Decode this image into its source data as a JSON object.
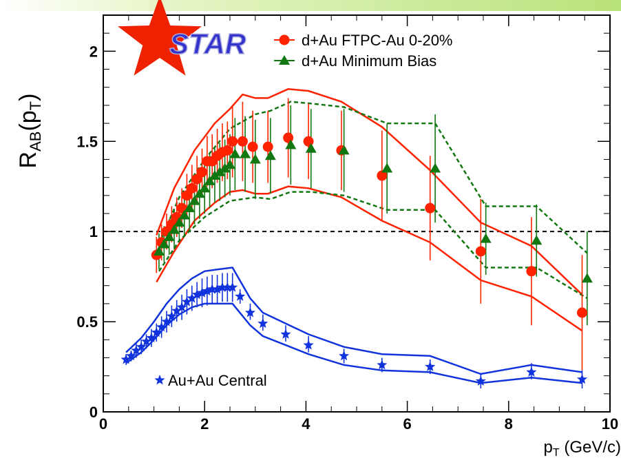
{
  "chart_data": {
    "type": "scatter",
    "xlabel": {
      "main": "p",
      "sub": "T",
      "rest": " (GeV/c)"
    },
    "ylabel": {
      "main": "R",
      "sub": "AB",
      "mid": "(p",
      "sub2": "T",
      "end": ")"
    },
    "xlim": [
      0,
      10
    ],
    "ylim": [
      0,
      2.2
    ],
    "xticks": [
      0,
      2,
      4,
      6,
      8,
      10
    ],
    "xtick_labels": [
      "0",
      "2",
      "4",
      "6",
      "8",
      "10"
    ],
    "yticks": [
      0,
      0.5,
      1,
      1.5,
      2
    ],
    "ytick_labels": [
      "0",
      "0.5",
      "1",
      "1.5",
      "2"
    ],
    "reference_line": {
      "y": 1,
      "style": "dashed",
      "color": "#000000"
    },
    "logo": {
      "text": "STAR",
      "color": "#3333cc",
      "star_color": "#ee2200"
    },
    "series": [
      {
        "name": "d+Au FTPC-Au 0-20%",
        "marker": "circle",
        "color": "#ff2200",
        "legend_position": "top",
        "points": [
          {
            "x": 1.05,
            "y": 0.87,
            "lo": 0.77,
            "hi": 0.97
          },
          {
            "x": 1.15,
            "y": 0.94,
            "lo": 0.84,
            "hi": 1.04
          },
          {
            "x": 1.25,
            "y": 1.0,
            "lo": 0.9,
            "hi": 1.1
          },
          {
            "x": 1.35,
            "y": 1.04,
            "lo": 0.94,
            "hi": 1.14
          },
          {
            "x": 1.45,
            "y": 1.08,
            "lo": 0.97,
            "hi": 1.19
          },
          {
            "x": 1.55,
            "y": 1.13,
            "lo": 1.02,
            "hi": 1.24
          },
          {
            "x": 1.65,
            "y": 1.2,
            "lo": 1.08,
            "hi": 1.32
          },
          {
            "x": 1.75,
            "y": 1.24,
            "lo": 1.11,
            "hi": 1.37
          },
          {
            "x": 1.85,
            "y": 1.29,
            "lo": 1.16,
            "hi": 1.42
          },
          {
            "x": 1.95,
            "y": 1.33,
            "lo": 1.2,
            "hi": 1.46
          },
          {
            "x": 2.05,
            "y": 1.39,
            "lo": 1.25,
            "hi": 1.53
          },
          {
            "x": 2.15,
            "y": 1.39,
            "lo": 1.24,
            "hi": 1.54
          },
          {
            "x": 2.25,
            "y": 1.42,
            "lo": 1.27,
            "hi": 1.57
          },
          {
            "x": 2.35,
            "y": 1.44,
            "lo": 1.28,
            "hi": 1.6
          },
          {
            "x": 2.45,
            "y": 1.45,
            "lo": 1.29,
            "hi": 1.61
          },
          {
            "x": 2.55,
            "y": 1.5,
            "lo": 1.3,
            "hi": 1.7
          },
          {
            "x": 2.75,
            "y": 1.5,
            "lo": 1.28,
            "hi": 1.72
          },
          {
            "x": 2.95,
            "y": 1.47,
            "lo": 1.27,
            "hi": 1.67
          },
          {
            "x": 3.25,
            "y": 1.47,
            "lo": 1.27,
            "hi": 1.67
          },
          {
            "x": 3.65,
            "y": 1.52,
            "lo": 1.3,
            "hi": 1.74
          },
          {
            "x": 4.05,
            "y": 1.5,
            "lo": 1.29,
            "hi": 1.71
          },
          {
            "x": 4.7,
            "y": 1.45,
            "lo": 1.23,
            "hi": 1.67
          },
          {
            "x": 5.5,
            "y": 1.31,
            "lo": 1.06,
            "hi": 1.56
          },
          {
            "x": 6.45,
            "y": 1.13,
            "lo": 0.84,
            "hi": 1.42
          },
          {
            "x": 7.45,
            "y": 0.89,
            "lo": 0.6,
            "hi": 1.18
          },
          {
            "x": 8.45,
            "y": 0.78,
            "lo": 0.48,
            "hi": 1.08
          },
          {
            "x": 9.45,
            "y": 0.55,
            "lo": 0.23,
            "hi": 0.87
          }
        ]
      },
      {
        "name": "d+Au Minimum Bias",
        "marker": "triangle",
        "color": "#117711",
        "legend_position": "top",
        "points": [
          {
            "x": 1.1,
            "y": 0.89,
            "lo": 0.79,
            "hi": 0.99
          },
          {
            "x": 1.2,
            "y": 0.93,
            "lo": 0.83,
            "hi": 1.03
          },
          {
            "x": 1.3,
            "y": 0.97,
            "lo": 0.87,
            "hi": 1.07
          },
          {
            "x": 1.4,
            "y": 1.01,
            "lo": 0.9,
            "hi": 1.12
          },
          {
            "x": 1.5,
            "y": 1.05,
            "lo": 0.94,
            "hi": 1.16
          },
          {
            "x": 1.6,
            "y": 1.09,
            "lo": 0.97,
            "hi": 1.21
          },
          {
            "x": 1.7,
            "y": 1.13,
            "lo": 1.0,
            "hi": 1.26
          },
          {
            "x": 1.8,
            "y": 1.17,
            "lo": 1.04,
            "hi": 1.3
          },
          {
            "x": 1.9,
            "y": 1.21,
            "lo": 1.07,
            "hi": 1.35
          },
          {
            "x": 2.0,
            "y": 1.24,
            "lo": 1.1,
            "hi": 1.38
          },
          {
            "x": 2.1,
            "y": 1.28,
            "lo": 1.13,
            "hi": 1.43
          },
          {
            "x": 2.2,
            "y": 1.31,
            "lo": 1.16,
            "hi": 1.46
          },
          {
            "x": 2.3,
            "y": 1.33,
            "lo": 1.17,
            "hi": 1.49
          },
          {
            "x": 2.4,
            "y": 1.35,
            "lo": 1.19,
            "hi": 1.51
          },
          {
            "x": 2.5,
            "y": 1.37,
            "lo": 1.2,
            "hi": 1.54
          },
          {
            "x": 2.6,
            "y": 1.43,
            "lo": 1.23,
            "hi": 1.63
          },
          {
            "x": 2.8,
            "y": 1.43,
            "lo": 1.22,
            "hi": 1.64
          },
          {
            "x": 3.0,
            "y": 1.4,
            "lo": 1.18,
            "hi": 1.62
          },
          {
            "x": 3.3,
            "y": 1.42,
            "lo": 1.21,
            "hi": 1.63
          },
          {
            "x": 3.7,
            "y": 1.48,
            "lo": 1.26,
            "hi": 1.7
          },
          {
            "x": 4.1,
            "y": 1.46,
            "lo": 1.24,
            "hi": 1.68
          },
          {
            "x": 4.75,
            "y": 1.45,
            "lo": 1.22,
            "hi": 1.68
          },
          {
            "x": 5.6,
            "y": 1.35,
            "lo": 1.1,
            "hi": 1.6
          },
          {
            "x": 6.55,
            "y": 1.35,
            "lo": 1.05,
            "hi": 1.65
          },
          {
            "x": 7.55,
            "y": 0.96,
            "lo": 0.76,
            "hi": 1.16
          },
          {
            "x": 8.55,
            "y": 0.95,
            "lo": 0.75,
            "hi": 1.15
          },
          {
            "x": 9.55,
            "y": 0.74,
            "lo": 0.48,
            "hi": 1.0
          }
        ]
      },
      {
        "name": "Au+Au Central",
        "marker": "star",
        "color": "#1133dd",
        "legend_position": "bottom-left",
        "points": [
          {
            "x": 0.45,
            "y": 0.29,
            "lo": 0.26,
            "hi": 0.32
          },
          {
            "x": 0.55,
            "y": 0.31,
            "lo": 0.28,
            "hi": 0.34
          },
          {
            "x": 0.65,
            "y": 0.34,
            "lo": 0.3,
            "hi": 0.38
          },
          {
            "x": 0.75,
            "y": 0.36,
            "lo": 0.32,
            "hi": 0.4
          },
          {
            "x": 0.85,
            "y": 0.39,
            "lo": 0.35,
            "hi": 0.43
          },
          {
            "x": 0.95,
            "y": 0.41,
            "lo": 0.36,
            "hi": 0.46
          },
          {
            "x": 1.05,
            "y": 0.44,
            "lo": 0.39,
            "hi": 0.49
          },
          {
            "x": 1.15,
            "y": 0.47,
            "lo": 0.41,
            "hi": 0.53
          },
          {
            "x": 1.25,
            "y": 0.5,
            "lo": 0.44,
            "hi": 0.56
          },
          {
            "x": 1.35,
            "y": 0.53,
            "lo": 0.47,
            "hi": 0.59
          },
          {
            "x": 1.45,
            "y": 0.56,
            "lo": 0.5,
            "hi": 0.62
          },
          {
            "x": 1.55,
            "y": 0.58,
            "lo": 0.51,
            "hi": 0.65
          },
          {
            "x": 1.65,
            "y": 0.61,
            "lo": 0.54,
            "hi": 0.68
          },
          {
            "x": 1.75,
            "y": 0.63,
            "lo": 0.56,
            "hi": 0.7
          },
          {
            "x": 1.85,
            "y": 0.65,
            "lo": 0.58,
            "hi": 0.72
          },
          {
            "x": 1.95,
            "y": 0.66,
            "lo": 0.58,
            "hi": 0.74
          },
          {
            "x": 2.05,
            "y": 0.67,
            "lo": 0.59,
            "hi": 0.75
          },
          {
            "x": 2.15,
            "y": 0.68,
            "lo": 0.6,
            "hi": 0.76
          },
          {
            "x": 2.25,
            "y": 0.68,
            "lo": 0.6,
            "hi": 0.76
          },
          {
            "x": 2.35,
            "y": 0.69,
            "lo": 0.61,
            "hi": 0.77
          },
          {
            "x": 2.45,
            "y": 0.69,
            "lo": 0.61,
            "hi": 0.77
          },
          {
            "x": 2.55,
            "y": 0.69,
            "lo": 0.61,
            "hi": 0.77
          },
          {
            "x": 2.7,
            "y": 0.64,
            "lo": 0.6,
            "hi": 0.68
          },
          {
            "x": 2.9,
            "y": 0.55,
            "lo": 0.51,
            "hi": 0.6
          },
          {
            "x": 3.15,
            "y": 0.49,
            "lo": 0.45,
            "hi": 0.54
          },
          {
            "x": 3.6,
            "y": 0.43,
            "lo": 0.39,
            "hi": 0.48
          },
          {
            "x": 4.05,
            "y": 0.37,
            "lo": 0.33,
            "hi": 0.42
          },
          {
            "x": 4.75,
            "y": 0.31,
            "lo": 0.27,
            "hi": 0.35
          },
          {
            "x": 5.5,
            "y": 0.26,
            "lo": 0.22,
            "hi": 0.3
          },
          {
            "x": 6.45,
            "y": 0.25,
            "lo": 0.21,
            "hi": 0.29
          },
          {
            "x": 7.45,
            "y": 0.17,
            "lo": 0.13,
            "hi": 0.21
          },
          {
            "x": 8.45,
            "y": 0.22,
            "lo": 0.18,
            "hi": 0.27
          },
          {
            "x": 9.45,
            "y": 0.18,
            "lo": 0.13,
            "hi": 0.23
          }
        ]
      }
    ],
    "bands": [
      {
        "series": "d+Au FTPC-Au 0-20%",
        "color": "#ff2200",
        "style": "solid",
        "upper": [
          [
            1.05,
            0.98
          ],
          [
            1.4,
            1.24
          ],
          [
            1.8,
            1.45
          ],
          [
            2.2,
            1.6
          ],
          [
            2.5,
            1.68
          ],
          [
            2.75,
            1.76
          ],
          [
            3.0,
            1.74
          ],
          [
            3.25,
            1.74
          ],
          [
            3.65,
            1.79
          ],
          [
            4.05,
            1.78
          ],
          [
            4.7,
            1.72
          ],
          [
            5.5,
            1.58
          ],
          [
            6.45,
            1.34
          ],
          [
            7.45,
            1.05
          ],
          [
            8.45,
            0.92
          ],
          [
            9.45,
            0.65
          ]
        ],
        "lower": [
          [
            1.05,
            0.72
          ],
          [
            1.4,
            0.89
          ],
          [
            1.8,
            1.06
          ],
          [
            2.2,
            1.16
          ],
          [
            2.5,
            1.22
          ],
          [
            2.75,
            1.23
          ],
          [
            3.0,
            1.21
          ],
          [
            3.25,
            1.21
          ],
          [
            3.65,
            1.25
          ],
          [
            4.05,
            1.24
          ],
          [
            4.7,
            1.19
          ],
          [
            5.5,
            1.06
          ],
          [
            6.45,
            0.94
          ],
          [
            7.45,
            0.73
          ],
          [
            8.45,
            0.64
          ],
          [
            9.45,
            0.45
          ]
        ]
      },
      {
        "series": "d+Au Minimum Bias",
        "color": "#117711",
        "style": "dashed",
        "upper": [
          [
            1.1,
            0.93
          ],
          [
            1.5,
            1.19
          ],
          [
            2.0,
            1.4
          ],
          [
            2.5,
            1.57
          ],
          [
            3.0,
            1.65
          ],
          [
            3.3,
            1.67
          ],
          [
            3.7,
            1.72
          ],
          [
            4.1,
            1.71
          ],
          [
            4.75,
            1.69
          ],
          [
            5.6,
            1.6
          ],
          [
            6.55,
            1.6
          ],
          [
            7.55,
            1.14
          ],
          [
            8.55,
            1.14
          ],
          [
            9.55,
            0.88
          ]
        ],
        "lower": [
          [
            1.1,
            0.78
          ],
          [
            1.5,
            0.95
          ],
          [
            2.0,
            1.08
          ],
          [
            2.5,
            1.17
          ],
          [
            3.0,
            1.19
          ],
          [
            3.3,
            1.18
          ],
          [
            3.7,
            1.22
          ],
          [
            4.1,
            1.22
          ],
          [
            4.75,
            1.2
          ],
          [
            5.6,
            1.12
          ],
          [
            6.55,
            1.12
          ],
          [
            7.55,
            0.8
          ],
          [
            8.55,
            0.8
          ],
          [
            9.55,
            0.63
          ]
        ]
      },
      {
        "series": "Au+Au Central",
        "color": "#1133dd",
        "style": "solid",
        "upper": [
          [
            0.45,
            0.33
          ],
          [
            0.75,
            0.41
          ],
          [
            1.0,
            0.5
          ],
          [
            1.25,
            0.6
          ],
          [
            1.5,
            0.68
          ],
          [
            1.75,
            0.74
          ],
          [
            2.0,
            0.78
          ],
          [
            2.25,
            0.79
          ],
          [
            2.55,
            0.8
          ],
          [
            2.9,
            0.63
          ],
          [
            3.15,
            0.55
          ],
          [
            3.6,
            0.49
          ],
          [
            4.05,
            0.43
          ],
          [
            4.75,
            0.36
          ],
          [
            5.5,
            0.32
          ],
          [
            6.45,
            0.31
          ],
          [
            7.45,
            0.21
          ],
          [
            8.45,
            0.26
          ],
          [
            9.45,
            0.22
          ]
        ],
        "lower": [
          [
            0.45,
            0.27
          ],
          [
            0.75,
            0.33
          ],
          [
            1.0,
            0.4
          ],
          [
            1.25,
            0.48
          ],
          [
            1.5,
            0.54
          ],
          [
            1.75,
            0.58
          ],
          [
            2.0,
            0.6
          ],
          [
            2.25,
            0.6
          ],
          [
            2.55,
            0.6
          ],
          [
            2.9,
            0.48
          ],
          [
            3.15,
            0.42
          ],
          [
            3.6,
            0.37
          ],
          [
            4.05,
            0.32
          ],
          [
            4.75,
            0.26
          ],
          [
            5.5,
            0.23
          ],
          [
            6.45,
            0.22
          ],
          [
            7.45,
            0.16
          ],
          [
            8.45,
            0.19
          ],
          [
            9.45,
            0.16
          ]
        ]
      }
    ]
  }
}
